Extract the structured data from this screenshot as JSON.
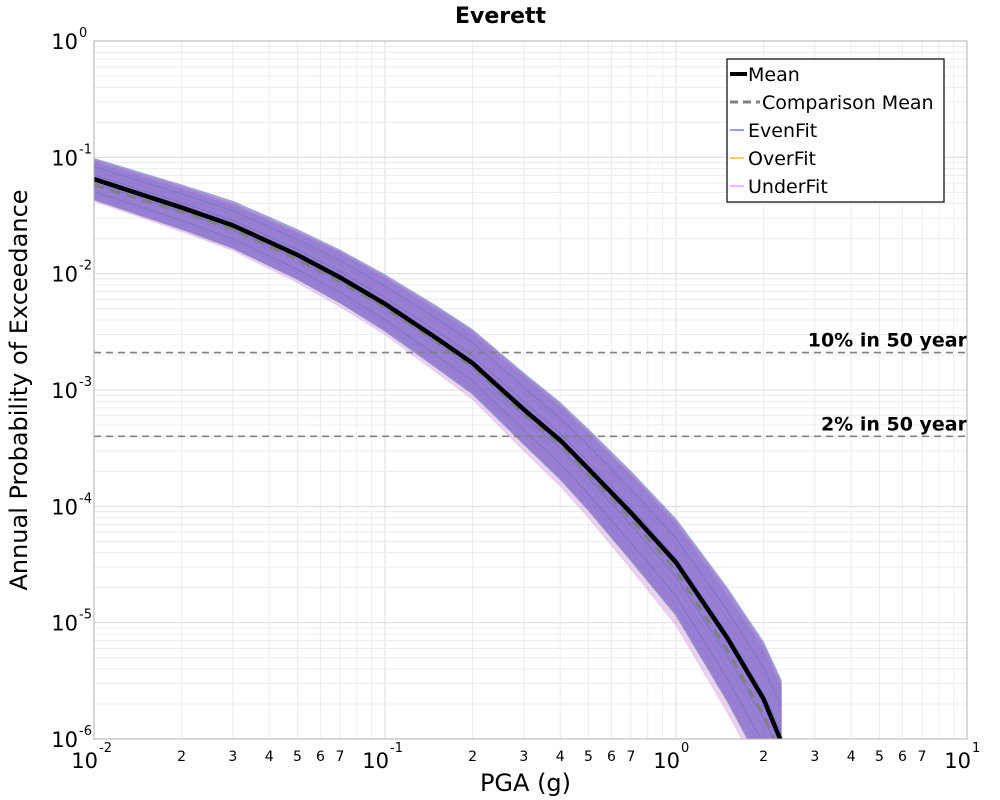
{
  "chart_data": {
    "type": "line",
    "title": "Everett",
    "xlabel": "PGA (g)",
    "ylabel": "Annual Probability of Exceedance",
    "xscale": "log",
    "yscale": "log",
    "xlim": [
      0.01,
      10
    ],
    "ylim": [
      1e-06,
      1
    ],
    "grid": true,
    "legend_position": "top-right",
    "x_major_ticks": [
      {
        "base": "10",
        "exp": "-2"
      },
      {
        "base": "10",
        "exp": "-1"
      },
      {
        "base": "10",
        "exp": "0"
      },
      {
        "base": "10",
        "exp": "1"
      }
    ],
    "x_minor_tick_labels": [
      "2",
      "3",
      "4",
      "5",
      "6",
      "7"
    ],
    "y_major_ticks": [
      {
        "base": "10",
        "exp": "0"
      },
      {
        "base": "10",
        "exp": "-1"
      },
      {
        "base": "10",
        "exp": "-2"
      },
      {
        "base": "10",
        "exp": "-3"
      },
      {
        "base": "10",
        "exp": "-4"
      },
      {
        "base": "10",
        "exp": "-5"
      },
      {
        "base": "10",
        "exp": "-6"
      }
    ],
    "x": [
      0.01,
      0.02,
      0.03,
      0.05,
      0.07,
      0.1,
      0.15,
      0.2,
      0.3,
      0.4,
      0.5,
      0.7,
      1.0,
      1.5,
      2.0,
      2.3
    ],
    "series": [
      {
        "name": "Mean",
        "color": "#000000",
        "style": "solid",
        "values": [
          0.065,
          0.037,
          0.026,
          0.0145,
          0.0093,
          0.0055,
          0.0028,
          0.0017,
          0.00068,
          0.00037,
          0.00021,
          8.8e-05,
          3.3e-05,
          7.4e-06,
          2.2e-06,
          9.5e-07
        ]
      },
      {
        "name": "Comparison Mean",
        "color": "#808080",
        "style": "dashed",
        "values": [
          0.058,
          0.034,
          0.024,
          0.0132,
          0.0085,
          0.0051,
          0.0026,
          0.0016,
          0.00063,
          0.00034,
          0.00019,
          7.8e-05,
          2.8e-05,
          5.8e-06,
          1.6e-06,
          7e-07
        ]
      },
      {
        "name": "EvenFit",
        "color": "#4169e1",
        "style": "band",
        "upper": [
          0.098,
          0.058,
          0.042,
          0.024,
          0.016,
          0.0098,
          0.0053,
          0.0033,
          0.0014,
          0.00078,
          0.00046,
          0.0002,
          7.8e-05,
          2e-05,
          6.8e-06,
          3.2e-06
        ],
        "lower": [
          0.043,
          0.024,
          0.0165,
          0.0089,
          0.0056,
          0.0032,
          0.00155,
          0.00092,
          0.00034,
          0.00017,
          9.2e-05,
          3.4e-05,
          1.15e-05,
          2.1e-06,
          5.5e-07,
          2.6e-07
        ]
      },
      {
        "name": "OverFit",
        "color": "#ffa500",
        "style": "band",
        "upper": [
          0.095,
          0.056,
          0.04,
          0.023,
          0.0155,
          0.0094,
          0.0051,
          0.0032,
          0.00135,
          0.00075,
          0.00044,
          0.00019,
          7.4e-05,
          1.9e-05,
          6.4e-06,
          3e-06
        ],
        "lower": [
          0.044,
          0.0245,
          0.0168,
          0.0091,
          0.0057,
          0.0033,
          0.0016,
          0.00095,
          0.00035,
          0.000175,
          9.5e-05,
          3.5e-05,
          1.2e-05,
          2.2e-06,
          5.8e-07,
          2.7e-07
        ]
      },
      {
        "name": "UnderFit",
        "color": "#ee82ee",
        "style": "band",
        "upper": [
          0.09,
          0.053,
          0.038,
          0.022,
          0.0148,
          0.009,
          0.0048,
          0.003,
          0.00128,
          0.00071,
          0.00041,
          0.00018,
          6.9e-05,
          1.7e-05,
          5.8e-06,
          2.7e-06
        ],
        "lower": [
          0.042,
          0.023,
          0.0158,
          0.0084,
          0.0052,
          0.003,
          0.00142,
          0.00083,
          0.0003,
          0.00015,
          8e-05,
          2.9e-05,
          9.5e-06,
          1.7e-06,
          4.5e-07,
          2.1e-07
        ]
      }
    ],
    "hlines": [
      {
        "label": "10% in 50 year",
        "y": 0.0021,
        "color": "#808080",
        "style": "dashed"
      },
      {
        "label": "2% in 50 year",
        "y": 0.0004,
        "color": "#808080",
        "style": "dashed"
      }
    ]
  }
}
